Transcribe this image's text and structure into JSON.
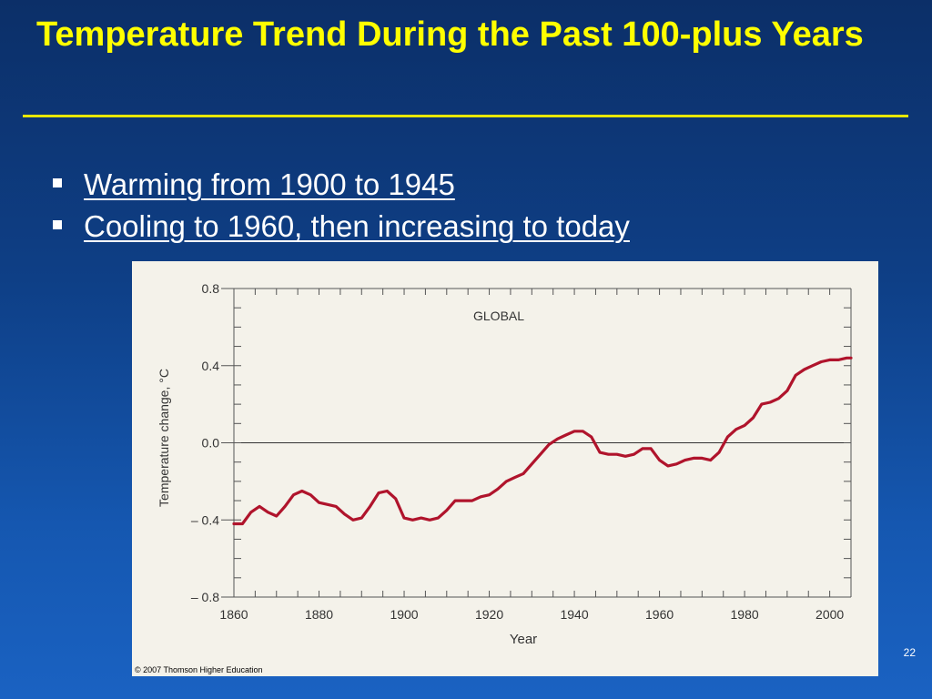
{
  "slide": {
    "title": "Temperature Trend During the Past 100-plus Years",
    "bullets": [
      {
        "text": "Warming from 1900 to 1945"
      },
      {
        "text": "Cooling to 1960, then increasing to today"
      }
    ],
    "page_number": "22",
    "copyright": "© 2007 Thomson Higher Education"
  },
  "colors": {
    "title": "#ffff00",
    "line": "#b0142c",
    "background": "#0e3f86"
  },
  "chart_data": {
    "type": "line",
    "title": "GLOBAL",
    "xlabel": "Year",
    "ylabel": "Temperature change, °C",
    "xlim": [
      1860,
      2005
    ],
    "ylim": [
      -0.8,
      0.8
    ],
    "x_tick_labels": [
      "1860",
      "1880",
      "1900",
      "1920",
      "1940",
      "1960",
      "1980",
      "2000"
    ],
    "x_ticks": [
      1860,
      1880,
      1900,
      1920,
      1940,
      1960,
      1980,
      2000
    ],
    "y_tick_labels": [
      "0.8",
      "0.4",
      "0.0",
      "– 0.4",
      "– 0.8"
    ],
    "y_ticks": [
      0.8,
      0.4,
      0.0,
      -0.4,
      -0.8
    ],
    "grid": false,
    "reference_line": 0.0,
    "series": [
      {
        "x": [
          1860,
          1862,
          1864,
          1866,
          1868,
          1870,
          1872,
          1874,
          1876,
          1878,
          1880,
          1882,
          1884,
          1886,
          1888,
          1890,
          1892,
          1894,
          1896,
          1898,
          1900,
          1902,
          1904,
          1906,
          1908,
          1910,
          1912,
          1914,
          1916,
          1918,
          1920,
          1922,
          1924,
          1926,
          1928,
          1930,
          1932,
          1934,
          1936,
          1938,
          1940,
          1942,
          1944,
          1946,
          1948,
          1950,
          1952,
          1954,
          1956,
          1958,
          1960,
          1962,
          1964,
          1966,
          1968,
          1970,
          1972,
          1974,
          1976,
          1978,
          1980,
          1982,
          1984,
          1986,
          1988,
          1990,
          1992,
          1994,
          1996,
          1998,
          2000,
          2002,
          2004,
          2005
        ],
        "values": [
          -0.42,
          -0.42,
          -0.36,
          -0.33,
          -0.36,
          -0.38,
          -0.33,
          -0.27,
          -0.25,
          -0.27,
          -0.31,
          -0.32,
          -0.33,
          -0.37,
          -0.4,
          -0.39,
          -0.33,
          -0.26,
          -0.25,
          -0.29,
          -0.39,
          -0.4,
          -0.39,
          -0.4,
          -0.39,
          -0.35,
          -0.3,
          -0.3,
          -0.3,
          -0.28,
          -0.27,
          -0.24,
          -0.2,
          -0.18,
          -0.16,
          -0.11,
          -0.06,
          -0.01,
          0.02,
          0.04,
          0.06,
          0.06,
          0.03,
          -0.05,
          -0.06,
          -0.06,
          -0.07,
          -0.06,
          -0.03,
          -0.03,
          -0.09,
          -0.12,
          -0.11,
          -0.09,
          -0.08,
          -0.08,
          -0.09,
          -0.05,
          0.03,
          0.07,
          0.09,
          0.13,
          0.2,
          0.21,
          0.23,
          0.27,
          0.35,
          0.38,
          0.4,
          0.42,
          0.43,
          0.43,
          0.44,
          0.44
        ]
      }
    ]
  }
}
